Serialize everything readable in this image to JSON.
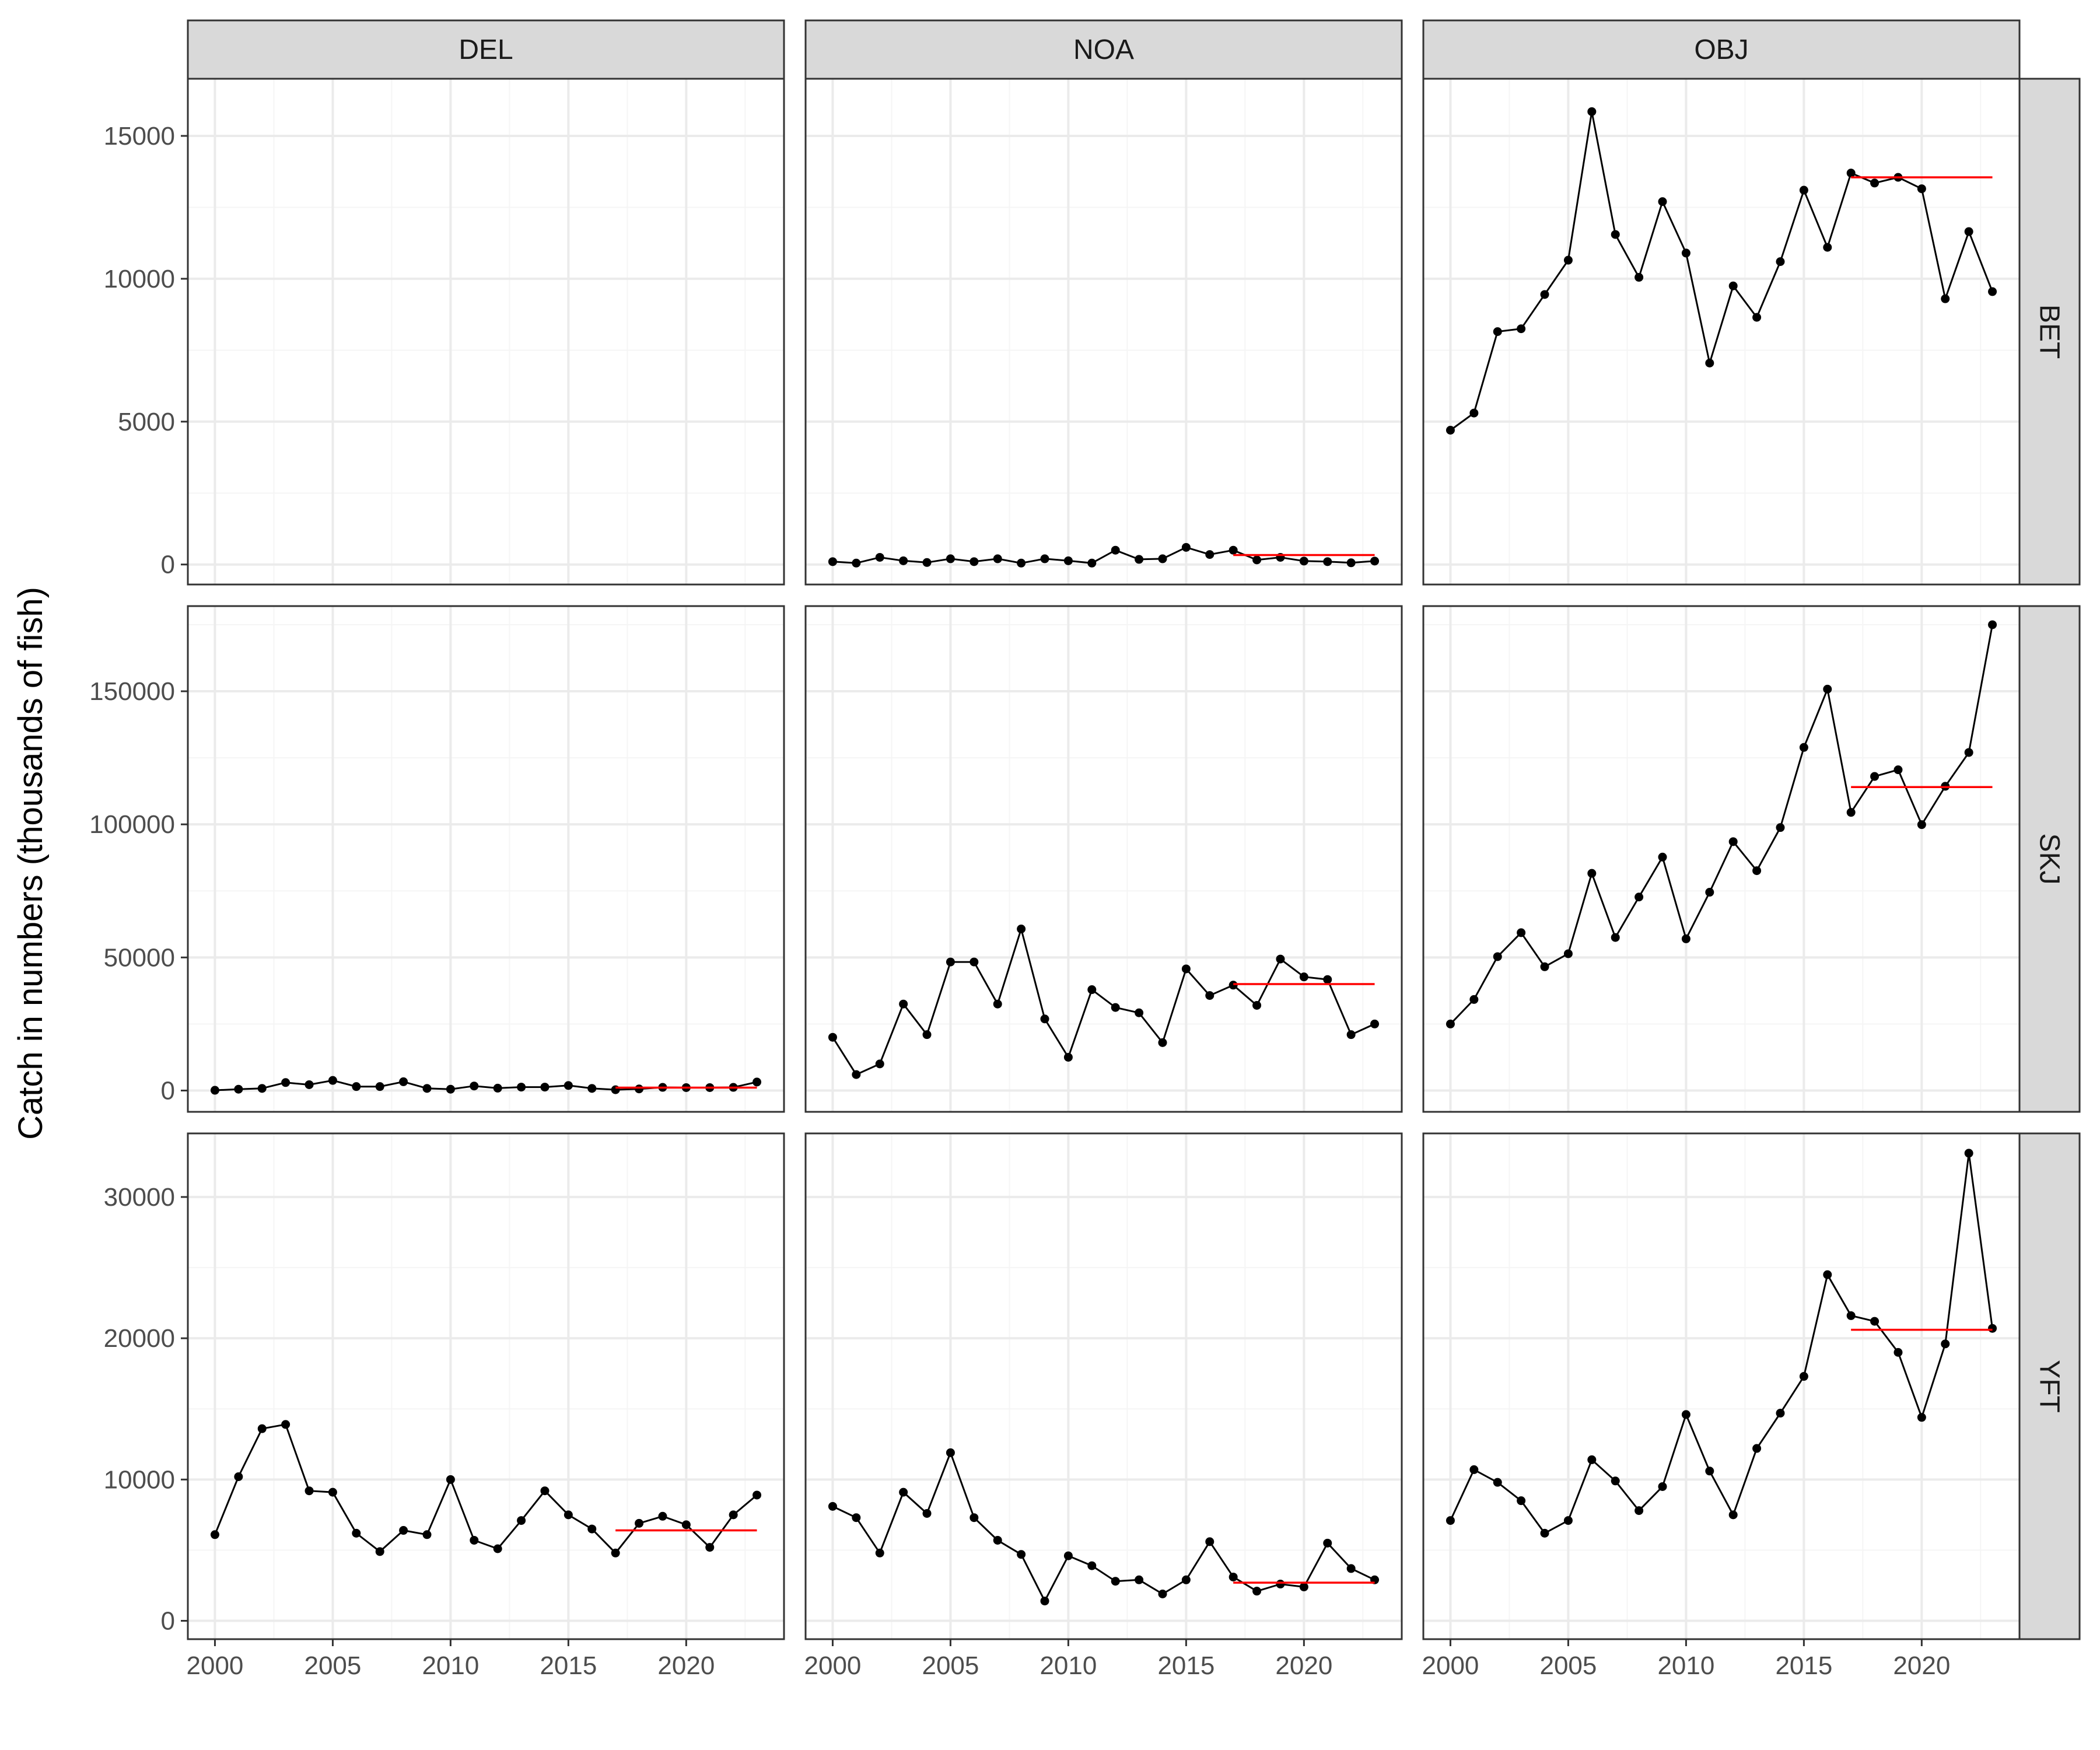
{
  "chart_data": {
    "type": "line",
    "layout": "facet_grid",
    "ylabel": "Catch in numbers (thousands of fish)",
    "xlabel": "",
    "x": [
      2000,
      2001,
      2002,
      2003,
      2004,
      2005,
      2006,
      2007,
      2008,
      2009,
      2010,
      2011,
      2012,
      2013,
      2014,
      2015,
      2016,
      2017,
      2018,
      2019,
      2020,
      2021,
      2022,
      2023
    ],
    "xlim": [
      1998.85,
      2024.15
    ],
    "x_ticks": [
      "2000",
      "2005",
      "2010",
      "2015",
      "2020"
    ],
    "column_facets": [
      "DEL",
      "NOA",
      "OBJ"
    ],
    "row_facets": [
      "BET",
      "SKJ",
      "YFT"
    ],
    "rows": [
      {
        "facet": "BET",
        "ylim": [
          -700,
          17000
        ],
        "y_ticks": [
          "0",
          "5000",
          "10000",
          "15000"
        ],
        "panels": [
          {
            "column": "DEL",
            "values": [],
            "reference_line": null
          },
          {
            "column": "NOA",
            "values": [
              100,
              50,
              250,
              130,
              70,
              200,
              100,
              200,
              50,
              200,
              130,
              50,
              500,
              180,
              200,
              600,
              350,
              500,
              160,
              250,
              120,
              100,
              60,
              120
            ],
            "reference_line": {
              "x_start": 2017,
              "x_end": 2023,
              "value": 330
            }
          },
          {
            "column": "OBJ",
            "values": [
              4700,
              5300,
              8150,
              8250,
              9450,
              10650,
              15850,
              11550,
              10050,
              12700,
              10900,
              7050,
              9750,
              8650,
              10600,
              13100,
              11100,
              13700,
              13350,
              13550,
              13150,
              9300,
              11650,
              9550
            ],
            "reference_line": {
              "x_start": 2017,
              "x_end": 2023,
              "value": 13550
            }
          }
        ]
      },
      {
        "facet": "SKJ",
        "ylim": [
          -8000,
          182000
        ],
        "y_ticks": [
          "0",
          "50000",
          "100000",
          "150000"
        ],
        "panels": [
          {
            "column": "DEL",
            "values": [
              100,
              500,
              800,
              3000,
              2200,
              3800,
              1500,
              1500,
              3300,
              800,
              500,
              1700,
              900,
              1300,
              1300,
              1900,
              800,
              300,
              600,
              1200,
              1100,
              1100,
              1200,
              3200
            ],
            "reference_line": {
              "x_start": 2017,
              "x_end": 2023,
              "value": 1100
            }
          },
          {
            "column": "NOA",
            "values": [
              20000,
              6000,
              10000,
              32500,
              21000,
              48300,
              48300,
              32500,
              60700,
              26900,
              12500,
              37900,
              31200,
              29200,
              18000,
              45700,
              35700,
              39600,
              32000,
              49400,
              42700,
              41700,
              21000,
              25000
            ],
            "reference_line": {
              "x_start": 2017,
              "x_end": 2023,
              "value": 40000
            }
          },
          {
            "column": "OBJ",
            "values": [
              25000,
              34200,
              50300,
              59300,
              46500,
              51400,
              81600,
              57500,
              72700,
              87700,
              57000,
              74500,
              93500,
              82600,
              98800,
              128900,
              150800,
              104500,
              118000,
              120500,
              99900,
              114300,
              127000,
              175000
            ],
            "reference_line": {
              "x_start": 2017,
              "x_end": 2023,
              "value": 114000
            }
          }
        ]
      },
      {
        "facet": "YFT",
        "ylim": [
          -1300,
          34500
        ],
        "y_ticks": [
          "0",
          "10000",
          "20000",
          "30000"
        ],
        "panels": [
          {
            "column": "DEL",
            "values": [
              6100,
              10200,
              13600,
              13900,
              9200,
              9100,
              6200,
              4900,
              6400,
              6100,
              10000,
              5700,
              5100,
              7100,
              9200,
              7500,
              6500,
              4800,
              6900,
              7400,
              6800,
              5200,
              7500,
              8900
            ],
            "reference_line": {
              "x_start": 2017,
              "x_end": 2023,
              "value": 6400
            }
          },
          {
            "column": "NOA",
            "values": [
              8100,
              7300,
              4800,
              9100,
              7600,
              11900,
              7300,
              5700,
              4700,
              1400,
              4600,
              3900,
              2800,
              2900,
              1900,
              2900,
              5600,
              3100,
              2100,
              2600,
              2400,
              5500,
              3700,
              2900
            ],
            "reference_line": {
              "x_start": 2017,
              "x_end": 2023,
              "value": 2700
            }
          },
          {
            "column": "OBJ",
            "values": [
              7100,
              10700,
              9800,
              8500,
              6200,
              7100,
              11400,
              9900,
              7800,
              9500,
              14600,
              10600,
              7500,
              12200,
              14700,
              17300,
              24500,
              21600,
              21200,
              19000,
              14400,
              19600,
              33100,
              20700
            ],
            "reference_line": {
              "x_start": 2017,
              "x_end": 2023,
              "value": 20600
            }
          }
        ]
      }
    ],
    "grid": true,
    "legend": "none",
    "colors": {
      "line": "#000000",
      "points": "#000000",
      "reference_line": "#ff0000",
      "panel_background": "#ffffff",
      "panel_border": "#333333",
      "grid_major": "#ebebeb",
      "grid_minor": "#f5f5f5",
      "strip_fill": "#d9d9d9",
      "axis_text": "#4d4d4d"
    }
  }
}
